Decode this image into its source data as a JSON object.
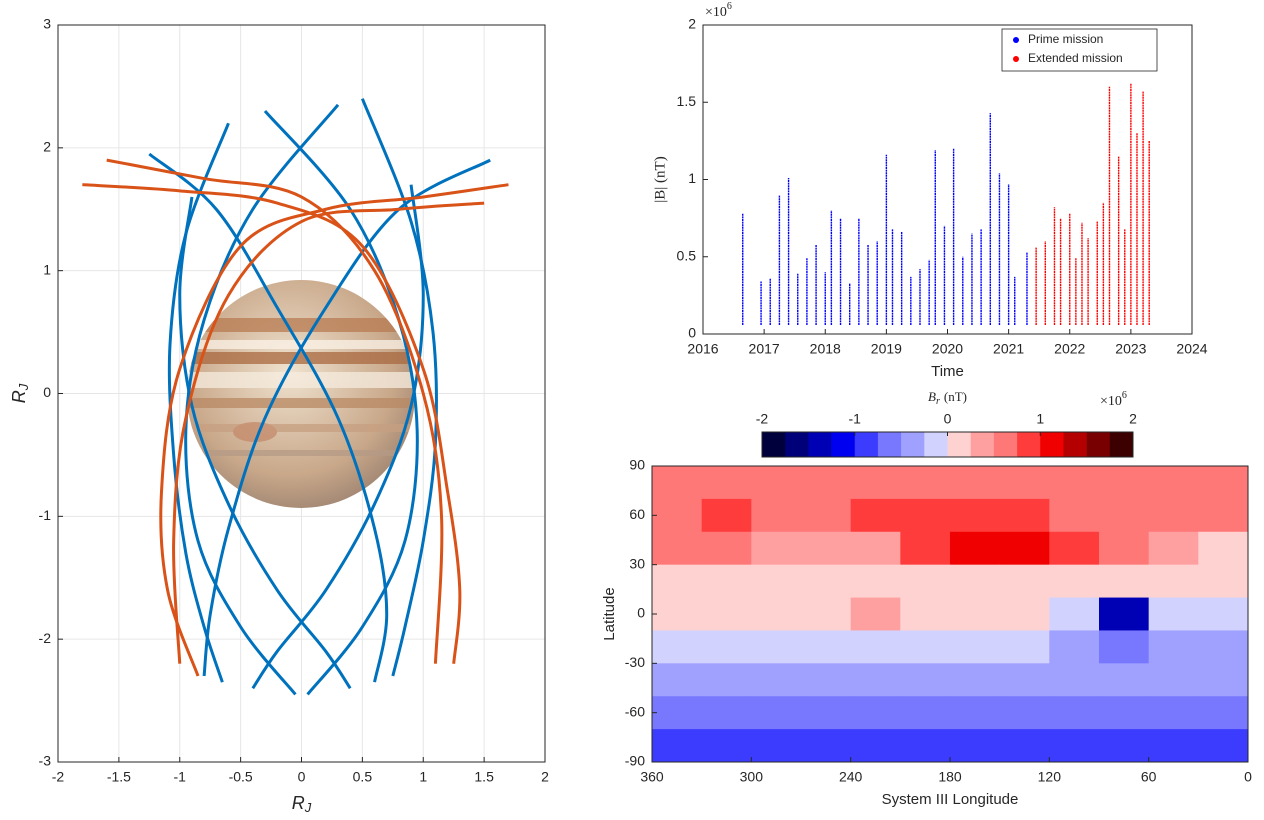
{
  "chart_data": [
    {
      "type": "line",
      "xlabel": "R",
      "xlabel_sub": "J",
      "ylabel": "R",
      "ylabel_sub": "J",
      "xlim": [
        -2,
        2
      ],
      "xticks": [
        -2,
        -1.5,
        -1,
        -0.5,
        0,
        0.5,
        1,
        1.5,
        2
      ],
      "ylim": [
        -3,
        3
      ],
      "yticks": [
        -3,
        -2,
        -1,
        0,
        1,
        2,
        3
      ],
      "grid": true,
      "series": [
        {
          "color": "#0072bd",
          "x": [
            -0.6,
            -0.95,
            -1.08,
            -1.05,
            -0.95,
            -0.8,
            -0.65
          ],
          "y": [
            2.2,
            1.3,
            0.4,
            -0.5,
            -1.3,
            -1.9,
            -2.35
          ]
        },
        {
          "color": "#0072bd",
          "x": [
            0.5,
            0.9,
            1.08,
            1.1,
            1.0,
            0.85,
            0.75
          ],
          "y": [
            2.4,
            1.4,
            0.5,
            -0.4,
            -1.2,
            -1.9,
            -2.3
          ]
        },
        {
          "color": "#0072bd",
          "x": [
            -0.3,
            0.4,
            0.8,
            0.95,
            0.85,
            0.5,
            0.05
          ],
          "y": [
            2.3,
            1.5,
            0.6,
            -0.3,
            -1.2,
            -1.9,
            -2.45
          ]
        },
        {
          "color": "#0072bd",
          "x": [
            0.3,
            -0.4,
            -0.8,
            -0.95,
            -0.85,
            -0.5,
            -0.05
          ],
          "y": [
            2.35,
            1.5,
            0.6,
            -0.3,
            -1.2,
            -1.9,
            -2.45
          ]
        },
        {
          "color": "#0072bd",
          "x": [
            -1.25,
            -0.7,
            -0.2,
            0.3,
            0.6,
            0.7,
            0.6
          ],
          "y": [
            1.95,
            1.5,
            0.7,
            -0.2,
            -1.1,
            -1.8,
            -2.35
          ]
        },
        {
          "color": "#0072bd",
          "x": [
            1.55,
            0.8,
            0.2,
            -0.3,
            -0.6,
            -0.75,
            -0.8
          ],
          "y": [
            1.9,
            1.5,
            0.7,
            -0.2,
            -1.1,
            -1.8,
            -2.3
          ]
        },
        {
          "color": "#0072bd",
          "x": [
            -0.9,
            -1.0,
            -0.9,
            -0.6,
            -0.2,
            0.2,
            0.4
          ],
          "y": [
            1.6,
            0.8,
            -0.1,
            -0.9,
            -1.6,
            -2.1,
            -2.4
          ]
        },
        {
          "color": "#0072bd",
          "x": [
            0.9,
            1.0,
            0.9,
            0.6,
            0.2,
            -0.2,
            -0.4
          ],
          "y": [
            1.7,
            0.8,
            -0.1,
            -0.9,
            -1.6,
            -2.1,
            -2.4
          ]
        },
        {
          "color": "#d95319",
          "x": [
            -1.8,
            -1.0,
            -0.2,
            0.5,
            1.0,
            1.2,
            1.3,
            1.25
          ],
          "y": [
            1.7,
            1.65,
            1.55,
            1.2,
            0.2,
            -0.8,
            -1.6,
            -2.2
          ]
        },
        {
          "color": "#d95319",
          "x": [
            1.7,
            1.0,
            0.2,
            -0.5,
            -1.0,
            -1.15,
            -1.1,
            -0.85
          ],
          "y": [
            1.7,
            1.6,
            1.5,
            1.2,
            0.2,
            -0.8,
            -1.6,
            -2.3
          ]
        },
        {
          "color": "#d95319",
          "x": [
            -1.6,
            -0.8,
            0,
            0.6,
            1.0,
            1.15,
            1.1
          ],
          "y": [
            1.9,
            1.75,
            1.6,
            1.0,
            0.0,
            -1.0,
            -2.2
          ]
        },
        {
          "color": "#d95319",
          "x": [
            1.5,
            0.8,
            0,
            -0.6,
            -0.95,
            -1.05,
            -1.0
          ],
          "y": [
            1.55,
            1.5,
            1.4,
            0.8,
            -0.2,
            -1.2,
            -2.2
          ]
        }
      ]
    },
    {
      "type": "stem",
      "xlabel": "Time",
      "ylabel": "|B| (nT)",
      "multiplier": "×10",
      "multiplier_exp": "6",
      "xlim": [
        2016,
        2024
      ],
      "xticks": [
        2016,
        2017,
        2018,
        2019,
        2020,
        2021,
        2022,
        2023,
        2024
      ],
      "ylim": [
        0,
        2
      ],
      "yticks": [
        0,
        0.5,
        1,
        1.5,
        2
      ],
      "grid": false,
      "legend": "top-right",
      "series": [
        {
          "name": "Prime mission",
          "color": "#0000ff",
          "x": [
            2016.65,
            2016.95,
            2017.1,
            2017.25,
            2017.4,
            2017.55,
            2017.7,
            2017.85,
            2018.0,
            2018.1,
            2018.25,
            2018.4,
            2018.55,
            2018.7,
            2018.85,
            2019.0,
            2019.1,
            2019.25,
            2019.4,
            2019.55,
            2019.7,
            2019.8,
            2019.95,
            2020.1,
            2020.25,
            2020.4,
            2020.55,
            2020.7,
            2020.85,
            2021.0,
            2021.1,
            2021.3
          ],
          "values": [
            0.78,
            0.34,
            0.36,
            0.9,
            1.01,
            0.39,
            0.49,
            0.58,
            0.4,
            0.8,
            0.75,
            0.33,
            0.75,
            0.58,
            0.6,
            1.16,
            0.68,
            0.66,
            0.37,
            0.42,
            0.48,
            1.19,
            0.7,
            1.2,
            0.5,
            0.65,
            0.68,
            1.43,
            1.04,
            0.97,
            0.37,
            0.53
          ]
        },
        {
          "name": "Extended mission",
          "color": "#ff0000",
          "x": [
            2021.45,
            2021.6,
            2021.75,
            2021.85,
            2022.0,
            2022.1,
            2022.2,
            2022.3,
            2022.45,
            2022.55,
            2022.65,
            2022.8,
            2022.9,
            2023.0,
            2023.1,
            2023.2,
            2023.3
          ],
          "values": [
            0.56,
            0.6,
            0.82,
            0.75,
            0.78,
            0.49,
            0.72,
            0.62,
            0.73,
            0.85,
            1.6,
            1.15,
            0.68,
            1.62,
            1.3,
            1.57,
            1.25
          ]
        }
      ]
    },
    {
      "type": "heatmap",
      "xlabel": "System III Longitude",
      "ylabel": "Latitude",
      "colorbar_label": "B",
      "colorbar_label_sub": "r",
      "colorbar_unit": "(nT)",
      "multiplier": "×10",
      "multiplier_exp": "6",
      "xlim": [
        360,
        0
      ],
      "xticks": [
        360,
        300,
        240,
        180,
        120,
        60,
        0
      ],
      "ylim": [
        -90,
        90
      ],
      "yticks": [
        90,
        60,
        30,
        0,
        -30,
        -60,
        -90
      ],
      "clim": [
        -2,
        2
      ],
      "cticks": [
        -2,
        -1,
        0,
        1,
        2
      ],
      "colorscale": [
        "#00003c",
        "#000078",
        "#0000b4",
        "#0000f0",
        "#3c3cff",
        "#7878ff",
        "#a0a0ff",
        "#d2d2ff",
        "#ffd2d2",
        "#ffa0a0",
        "#ff7878",
        "#ff3c3c",
        "#f00000",
        "#b40000",
        "#780000",
        "#3c0000"
      ],
      "x": [
        345,
        315,
        285,
        255,
        225,
        195,
        165,
        135,
        105,
        75,
        45,
        15
      ],
      "y": [
        80,
        60,
        40,
        20,
        0,
        -20,
        -40,
        -60,
        -80
      ],
      "z": [
        [
          0.6,
          0.6,
          0.6,
          0.6,
          0.6,
          0.6,
          0.6,
          0.6,
          0.6,
          0.6,
          0.6,
          0.6
        ],
        [
          0.6,
          0.9,
          0.6,
          0.7,
          0.8,
          0.9,
          0.9,
          0.8,
          0.6,
          0.6,
          0.5,
          0.5
        ],
        [
          0.5,
          0.7,
          0.3,
          0.3,
          0.4,
          0.8,
          1.1,
          1.2,
          0.8,
          0.6,
          0.3,
          0.1
        ],
        [
          0.1,
          0.1,
          0.1,
          0.1,
          0.1,
          0.2,
          0.2,
          0.1,
          0.1,
          0.1,
          0.1,
          0.1
        ],
        [
          0.05,
          0.05,
          0.05,
          0.05,
          0.3,
          0.05,
          0.05,
          0,
          -0.2,
          -1.5,
          -0.1,
          -0.05
        ],
        [
          -0.2,
          -0.2,
          -0.2,
          -0.2,
          -0.2,
          -0.2,
          -0.2,
          -0.2,
          -0.3,
          -0.6,
          -0.3,
          -0.3
        ],
        [
          -0.4,
          -0.4,
          -0.4,
          -0.4,
          -0.4,
          -0.4,
          -0.4,
          -0.4,
          -0.4,
          -0.4,
          -0.4,
          -0.4
        ],
        [
          -0.7,
          -0.7,
          -0.7,
          -0.7,
          -0.7,
          -0.7,
          -0.7,
          -0.7,
          -0.7,
          -0.7,
          -0.7,
          -0.7
        ],
        [
          -0.9,
          -0.9,
          -0.9,
          -0.9,
          -0.9,
          -0.9,
          -0.9,
          -0.9,
          -0.9,
          -0.9,
          -0.9,
          -0.9
        ]
      ]
    }
  ]
}
